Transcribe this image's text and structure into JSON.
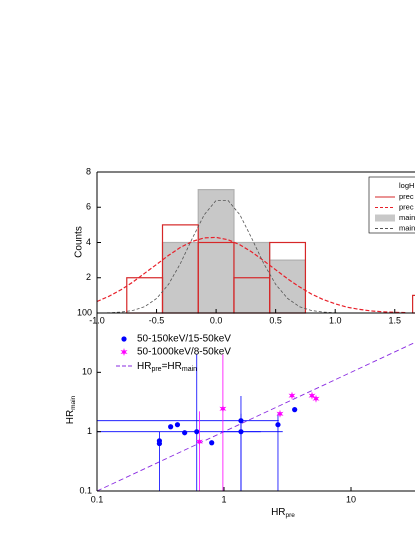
{
  "chart_data": [
    {
      "type": "histogram",
      "ylabel": "Counts",
      "xlim": [
        -1.0,
        1.67
      ],
      "ylim": [
        0,
        8
      ],
      "xticks": [
        {
          "value": -1.0,
          "label": "-1.0"
        },
        -0.5,
        {
          "value": 0.0,
          "label": "0.0"
        },
        0.5,
        {
          "value": 1.0,
          "label": "1.0"
        },
        1.5
      ],
      "yticks": [
        2,
        4,
        6,
        8
      ],
      "legend": {
        "title": "logH",
        "position": "upper right"
      },
      "series": [
        {
          "name": "main",
          "style": "filled",
          "color": "#c8c8c8",
          "bins": [
            -0.45,
            -0.15,
            0.15,
            0.45,
            0.75
          ],
          "values": [
            4,
            7,
            4,
            3
          ]
        },
        {
          "name": "prec",
          "style": "outline",
          "color": "#d62728",
          "bins": [
            -0.75,
            -0.45,
            -0.15,
            0.15,
            0.45,
            0.75,
            1.05,
            1.35,
            1.65,
            1.95
          ],
          "values": [
            2,
            5,
            4,
            2,
            4,
            0,
            0,
            0,
            1
          ]
        }
      ],
      "curves": [
        {
          "name": "prec",
          "color": "#e8202a",
          "x": [
            -1.0,
            -0.9,
            -0.8,
            -0.7,
            -0.6,
            -0.5,
            -0.4,
            -0.3,
            -0.2,
            -0.1,
            0.0,
            0.1,
            0.2,
            0.3,
            0.4,
            0.5,
            0.6,
            0.7,
            0.8,
            0.9,
            1.0,
            1.1,
            1.2,
            1.3,
            1.4,
            1.5,
            1.6
          ],
          "values": [
            0.65,
            0.95,
            1.31,
            1.75,
            2.25,
            2.76,
            3.27,
            3.72,
            4.06,
            4.26,
            4.29,
            4.16,
            3.87,
            3.46,
            2.97,
            2.45,
            1.94,
            1.48,
            1.08,
            0.76,
            0.52,
            0.33,
            0.21,
            0.12,
            0.07,
            0.04,
            0.02
          ]
        },
        {
          "name": "main",
          "color": "#555555",
          "x": [
            -1.0,
            -0.9,
            -0.8,
            -0.7,
            -0.6,
            -0.5,
            -0.4,
            -0.3,
            -0.2,
            -0.1,
            0.0,
            0.1,
            0.2,
            0.3,
            0.4,
            0.5,
            0.6,
            0.7,
            0.8,
            0.9,
            1.0,
            1.1,
            1.2,
            1.3,
            1.4,
            1.5,
            1.6
          ],
          "values": [
            0.0,
            0.01,
            0.05,
            0.14,
            0.36,
            0.82,
            1.62,
            2.81,
            4.23,
            5.57,
            6.39,
            6.39,
            5.57,
            4.23,
            2.81,
            1.62,
            0.82,
            0.36,
            0.14,
            0.05,
            0.01,
            0.0,
            0.0,
            0.0,
            0.0,
            0.0,
            0.0
          ]
        }
      ]
    },
    {
      "type": "scatter",
      "log_x": true,
      "log_y": true,
      "xlabel": {
        "base": "HR",
        "sub": "pre"
      },
      "ylabel": {
        "base": "HR",
        "sub": "main"
      },
      "xlim": [
        0.1,
        31.9
      ],
      "ylim": [
        0.1,
        100
      ],
      "xticks": [
        0.1,
        1,
        10
      ],
      "yticks": [
        0.1,
        1,
        10,
        100
      ],
      "legend": {
        "position": "upper left"
      },
      "series": [
        {
          "name": "50-150keV/15-50keV",
          "color": "#0000ff",
          "marker": "circle",
          "x": [
            0.31,
            0.31,
            0.38,
            0.43,
            0.49,
            0.61,
            0.8,
            1.36,
            1.36,
            2.66,
            3.6
          ],
          "values": [
            0.7,
            0.63,
            1.21,
            1.31,
            0.96,
            1.0,
            0.65,
            1.53,
            1.0,
            1.31,
            2.35
          ],
          "y_lower": [
            0.1,
            null,
            null,
            null,
            null,
            0.1,
            null,
            0.1,
            0.1,
            0.1,
            null
          ],
          "y_upper": [
            1.0,
            null,
            null,
            null,
            null,
            20,
            null,
            4.0,
            2.0,
            2.0,
            null
          ],
          "x_lower": [
            null,
            null,
            null,
            null,
            null,
            0.1,
            null,
            0.1,
            0.95,
            null,
            null
          ],
          "x_upper": [
            null,
            null,
            null,
            null,
            null,
            2.9,
            null,
            2.7,
            1.95,
            null,
            null
          ]
        },
        {
          "name": "50-1000keV/8-50keV",
          "color": "#ff00ff",
          "marker": "star",
          "x": [
            0.64,
            0.98,
            2.76,
            3.43,
            4.93,
            5.3
          ],
          "values": [
            0.68,
            2.44,
            2.0,
            4.05,
            4.05,
            3.6
          ],
          "y_lower": [
            0.1,
            0.1,
            null,
            null,
            null,
            null
          ],
          "y_upper": [
            2.2,
            20,
            null,
            null,
            null,
            null
          ],
          "x_lower": [
            null,
            null,
            null,
            null,
            null,
            null
          ],
          "x_upper": [
            null,
            null,
            null,
            null,
            null,
            null
          ]
        }
      ],
      "reference_line": {
        "color": "#8a2be2",
        "label": [
          "HR",
          "pre",
          "=HR",
          "main"
        ]
      }
    }
  ]
}
